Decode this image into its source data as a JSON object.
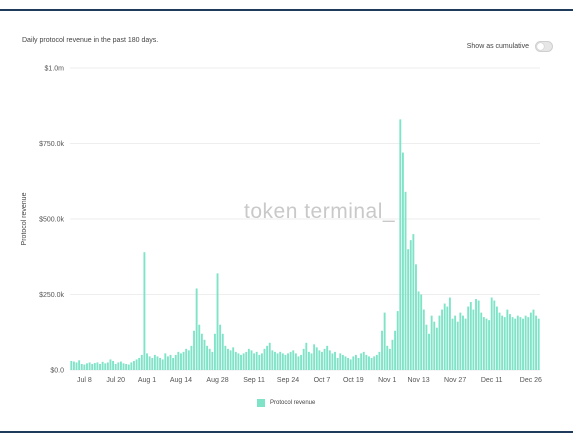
{
  "header": {
    "subtitle": "Daily protocol revenue in the past 180 days.",
    "cumulative_label": "Show as cumulative",
    "cumulative_on": false
  },
  "watermark": "token terminal_",
  "colors": {
    "bar": "#7ee3c7",
    "frame": "#1f3b5c",
    "grid": "#eeeeee"
  },
  "chart_data": {
    "type": "bar",
    "ylabel": "Protocol revenue",
    "ylim": [
      0,
      1000000
    ],
    "y_ticks": [
      {
        "value": 0,
        "label": "$0.0"
      },
      {
        "value": 250000,
        "label": "$250.0k"
      },
      {
        "value": 500000,
        "label": "$500.0k"
      },
      {
        "value": 750000,
        "label": "$750.0k"
      },
      {
        "value": 1000000,
        "label": "$1.0m"
      }
    ],
    "x_ticks": [
      {
        "index": 5,
        "label": "Jul 8"
      },
      {
        "index": 17,
        "label": "Jul 20"
      },
      {
        "index": 29,
        "label": "Aug 1"
      },
      {
        "index": 42,
        "label": "Aug 14"
      },
      {
        "index": 56,
        "label": "Aug 28"
      },
      {
        "index": 70,
        "label": "Sep 11"
      },
      {
        "index": 83,
        "label": "Sep 24"
      },
      {
        "index": 96,
        "label": "Oct 7"
      },
      {
        "index": 108,
        "label": "Oct 19"
      },
      {
        "index": 121,
        "label": "Nov 1"
      },
      {
        "index": 133,
        "label": "Nov 13"
      },
      {
        "index": 147,
        "label": "Nov 27"
      },
      {
        "index": 161,
        "label": "Dec 11"
      },
      {
        "index": 176,
        "label": "Dec 26"
      }
    ],
    "series": [
      {
        "name": "Protocol revenue",
        "values": [
          30000,
          28000,
          25000,
          32000,
          20000,
          18000,
          22000,
          25000,
          20000,
          23000,
          25000,
          20000,
          27000,
          22000,
          25000,
          35000,
          30000,
          20000,
          25000,
          28000,
          22000,
          20000,
          18000,
          25000,
          30000,
          35000,
          40000,
          50000,
          390000,
          55000,
          45000,
          40000,
          50000,
          45000,
          40000,
          35000,
          55000,
          45000,
          50000,
          40000,
          50000,
          60000,
          55000,
          60000,
          70000,
          65000,
          80000,
          130000,
          270000,
          150000,
          120000,
          100000,
          80000,
          70000,
          60000,
          120000,
          320000,
          150000,
          120000,
          80000,
          70000,
          65000,
          75000,
          60000,
          55000,
          50000,
          55000,
          60000,
          70000,
          65000,
          55000,
          60000,
          50000,
          55000,
          70000,
          80000,
          90000,
          65000,
          60000,
          55000,
          60000,
          55000,
          50000,
          55000,
          60000,
          65000,
          55000,
          45000,
          50000,
          70000,
          90000,
          60000,
          55000,
          85000,
          75000,
          65000,
          60000,
          70000,
          80000,
          65000,
          55000,
          60000,
          40000,
          55000,
          50000,
          45000,
          40000,
          35000,
          45000,
          50000,
          40000,
          55000,
          60000,
          50000,
          45000,
          40000,
          45000,
          50000,
          60000,
          130000,
          190000,
          80000,
          70000,
          100000,
          130000,
          195000,
          830000,
          720000,
          590000,
          400000,
          430000,
          450000,
          350000,
          260000,
          250000,
          200000,
          150000,
          120000,
          180000,
          160000,
          140000,
          180000,
          200000,
          220000,
          210000,
          240000,
          170000,
          180000,
          160000,
          190000,
          180000,
          170000,
          210000,
          225000,
          200000,
          235000,
          230000,
          190000,
          175000,
          170000,
          165000,
          240000,
          230000,
          210000,
          190000,
          180000,
          175000,
          200000,
          185000,
          175000,
          170000,
          180000,
          175000,
          170000,
          180000,
          175000,
          190000,
          200000,
          180000,
          170000
        ]
      }
    ]
  }
}
